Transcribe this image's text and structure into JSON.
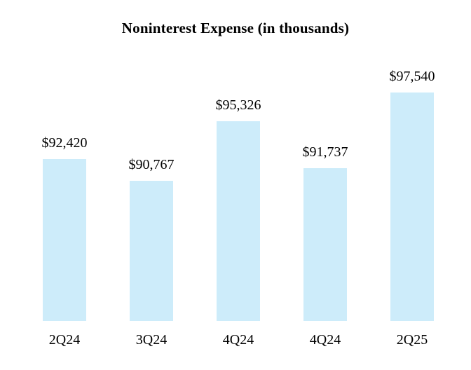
{
  "page": {
    "background": "#ffffff"
  },
  "chart_data": {
    "type": "bar",
    "title": "Noninterest Expense (in thousands)",
    "categories": [
      "2Q24",
      "3Q24",
      "4Q24",
      "4Q24",
      "2Q25"
    ],
    "values": [
      92420,
      90767,
      95326,
      91737,
      97540
    ],
    "value_labels": [
      "$92,420",
      "$90,767",
      "$95,326",
      "$91,737",
      "$97,540"
    ],
    "xlabel": "",
    "ylabel": "",
    "ylim": [
      80000,
      101400
    ],
    "grid": false,
    "legend": false,
    "bar_color": "#CDECFA",
    "text_color": "#000000"
  }
}
